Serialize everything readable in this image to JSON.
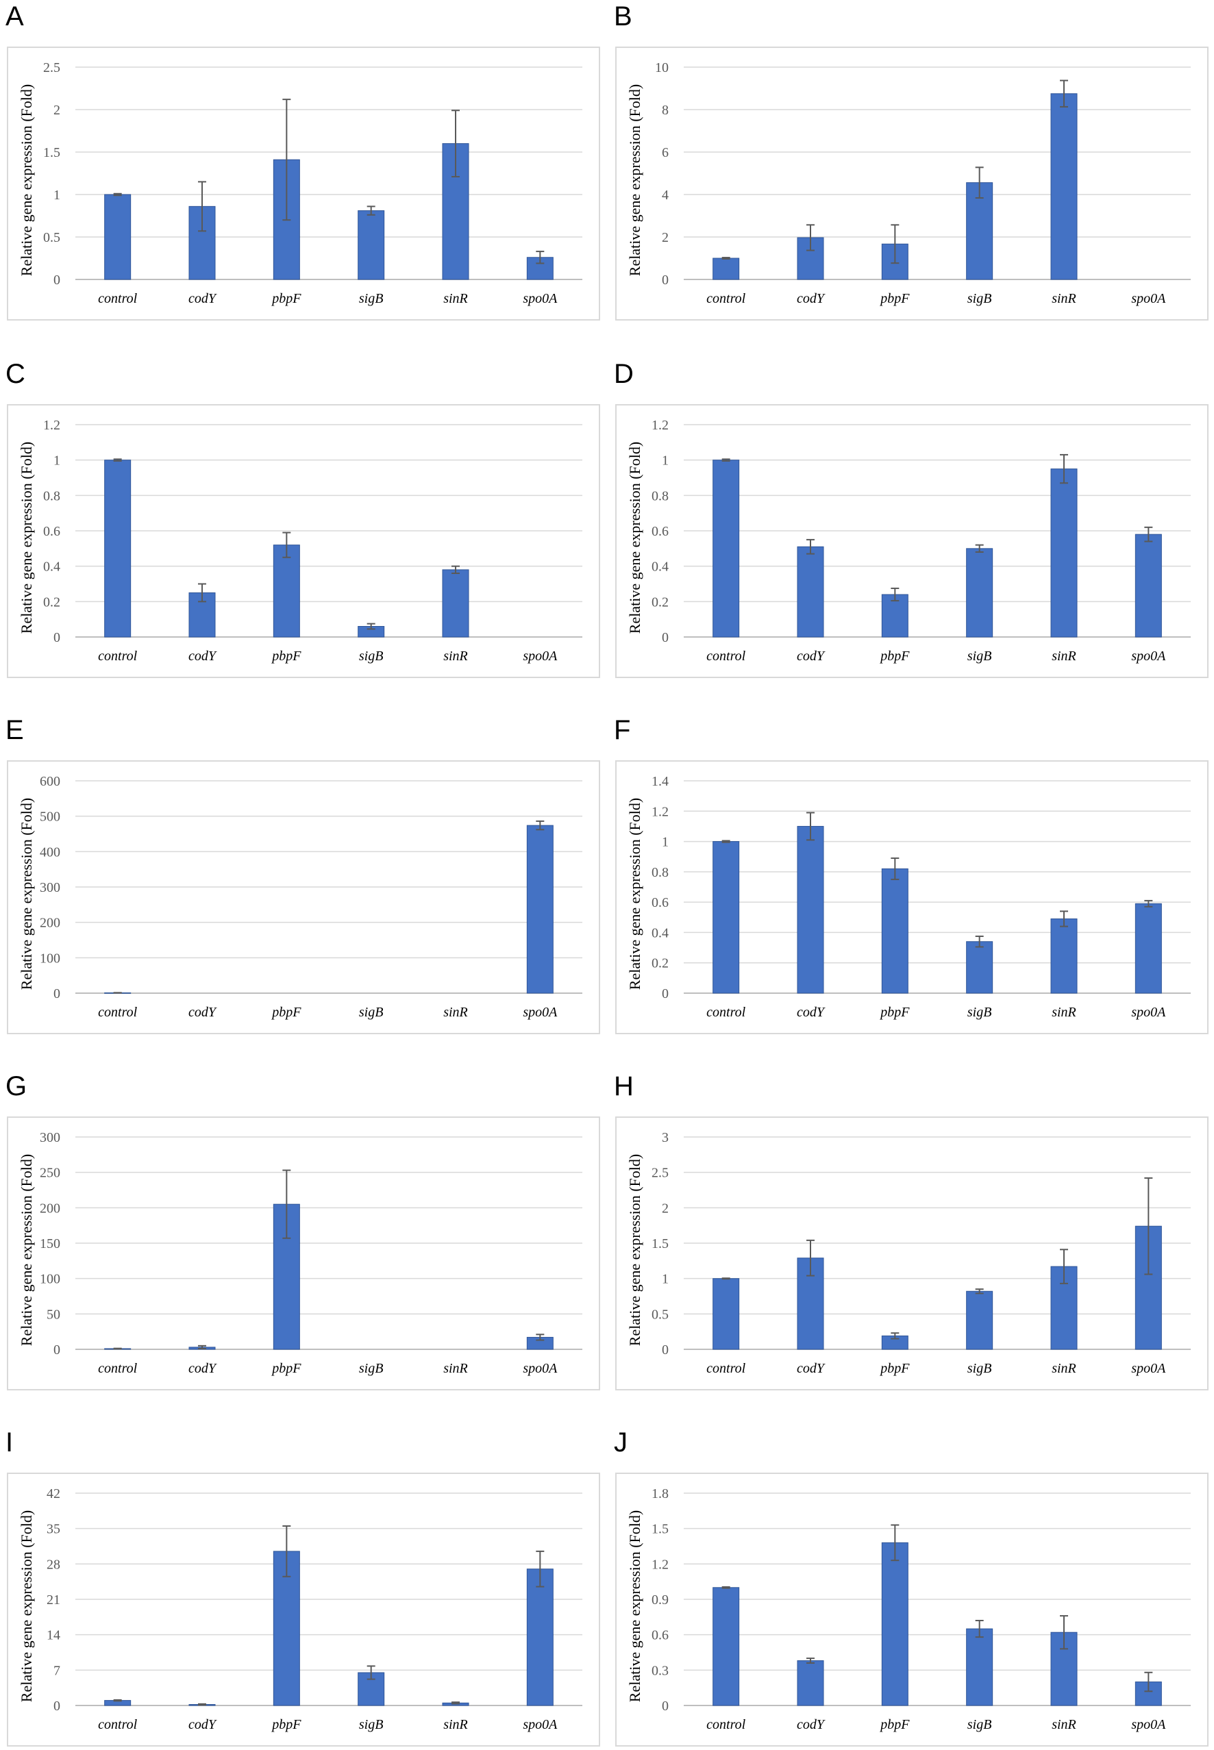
{
  "colors": {
    "bar": "#4472c4",
    "bar_edge": "#2f5597",
    "grid": "#d9d9d9",
    "frame": "#d9d9d9"
  },
  "chart_data": [
    {
      "panel": "A",
      "type": "bar",
      "ylabel": "Relative gene expression (Fold)",
      "categories": [
        "control",
        "codY",
        "pbpF",
        "sigB",
        "sinR",
        "spo0A"
      ],
      "values": [
        1.0,
        0.86,
        1.41,
        0.81,
        1.6,
        0.26
      ],
      "errors": [
        0.01,
        0.29,
        0.71,
        0.05,
        0.39,
        0.07
      ],
      "yticks": [
        "0",
        "0.5",
        "1",
        "1.5",
        "2",
        "2.5"
      ],
      "ylim": [
        0,
        2.5
      ]
    },
    {
      "panel": "B",
      "type": "bar",
      "ylabel": "Relative gene expression (Fold)",
      "categories": [
        "control",
        "codY",
        "pbpF",
        "sigB",
        "sinR",
        "spo0A"
      ],
      "values": [
        1.0,
        1.97,
        1.67,
        4.56,
        8.75,
        null
      ],
      "errors": [
        0.03,
        0.6,
        0.9,
        0.72,
        0.62,
        null
      ],
      "yticks": [
        "0",
        "2",
        "4",
        "6",
        "8",
        "10"
      ],
      "ylim": [
        0,
        10
      ]
    },
    {
      "panel": "C",
      "type": "bar",
      "ylabel": "Relative gene expression (Fold)",
      "categories": [
        "control",
        "codY",
        "pbpF",
        "sigB",
        "sinR",
        "spo0A"
      ],
      "values": [
        1.0,
        0.25,
        0.52,
        0.06,
        0.38,
        null
      ],
      "errors": [
        0.005,
        0.05,
        0.07,
        0.015,
        0.02,
        null
      ],
      "yticks": [
        "0",
        "0.2",
        "0.4",
        "0.6",
        "0.8",
        "1",
        "1.2"
      ],
      "ylim": [
        0,
        1.2
      ]
    },
    {
      "panel": "D",
      "type": "bar",
      "ylabel": "Relative gene expression (Fold)",
      "categories": [
        "control",
        "codY",
        "pbpF",
        "sigB",
        "sinR",
        "spo0A"
      ],
      "values": [
        1.0,
        0.51,
        0.24,
        0.5,
        0.95,
        0.58
      ],
      "errors": [
        0.005,
        0.04,
        0.035,
        0.02,
        0.08,
        0.04
      ],
      "yticks": [
        "0",
        "0.2",
        "0.4",
        "0.6",
        "0.8",
        "1",
        "1.2"
      ],
      "ylim": [
        0,
        1.2
      ]
    },
    {
      "panel": "E",
      "type": "bar",
      "ylabel": "Relative gene expression (Fold)",
      "categories": [
        "control",
        "codY",
        "pbpF",
        "sigB",
        "sinR",
        "spo0A"
      ],
      "values": [
        1.0,
        null,
        null,
        null,
        null,
        474
      ],
      "errors": [
        0.3,
        null,
        null,
        null,
        null,
        12
      ],
      "yticks": [
        "0",
        "100",
        "200",
        "300",
        "400",
        "500",
        "600"
      ],
      "ylim": [
        0,
        600
      ]
    },
    {
      "panel": "F",
      "type": "bar",
      "ylabel": "Relative gene expression (Fold)",
      "categories": [
        "control",
        "codY",
        "pbpF",
        "sigB",
        "sinR",
        "spo0A"
      ],
      "values": [
        1.0,
        1.1,
        0.82,
        0.34,
        0.49,
        0.59
      ],
      "errors": [
        0.005,
        0.09,
        0.07,
        0.035,
        0.05,
        0.02
      ],
      "yticks": [
        "0",
        "0.2",
        "0.4",
        "0.6",
        "0.8",
        "1",
        "1.2",
        "1.4"
      ],
      "ylim": [
        0,
        1.4
      ]
    },
    {
      "panel": "G",
      "type": "bar",
      "ylabel": "Relative gene expression (Fold)",
      "categories": [
        "control",
        "codY",
        "pbpF",
        "sigB",
        "sinR",
        "spo0A"
      ],
      "values": [
        1.0,
        3.0,
        205,
        null,
        null,
        17
      ],
      "errors": [
        0.3,
        2.0,
        48,
        null,
        null,
        4
      ],
      "yticks": [
        "0",
        "50",
        "100",
        "150",
        "200",
        "250",
        "300"
      ],
      "ylim": [
        0,
        300
      ]
    },
    {
      "panel": "H",
      "type": "bar",
      "ylabel": "Relative gene expression (Fold)",
      "categories": [
        "control",
        "codY",
        "pbpF",
        "sigB",
        "sinR",
        "spo0A"
      ],
      "values": [
        1.0,
        1.29,
        0.19,
        0.82,
        1.17,
        1.74
      ],
      "errors": [
        0.005,
        0.25,
        0.04,
        0.03,
        0.24,
        0.68
      ],
      "yticks": [
        "0",
        "0.5",
        "1",
        "1.5",
        "2",
        "2.5",
        "3"
      ],
      "ylim": [
        0,
        3
      ]
    },
    {
      "panel": "I",
      "type": "bar",
      "ylabel": "Relative gene expression (Fold)",
      "categories": [
        "control",
        "codY",
        "pbpF",
        "sigB",
        "sinR",
        "spo0A"
      ],
      "values": [
        1.0,
        0.2,
        30.5,
        6.5,
        0.5,
        27.0
      ],
      "errors": [
        0.1,
        0.1,
        5.0,
        1.3,
        0.15,
        3.5
      ],
      "yticks": [
        "0",
        "7",
        "14",
        "21",
        "28",
        "35",
        "42"
      ],
      "ylim": [
        0,
        42
      ]
    },
    {
      "panel": "J",
      "type": "bar",
      "ylabel": "Relative gene expression (Fold)",
      "categories": [
        "control",
        "codY",
        "pbpF",
        "sigB",
        "sinR",
        "spo0A"
      ],
      "values": [
        1.0,
        0.38,
        1.38,
        0.65,
        0.62,
        0.2
      ],
      "errors": [
        0.005,
        0.02,
        0.15,
        0.07,
        0.14,
        0.08
      ],
      "yticks": [
        "0",
        "0.3",
        "0.6",
        "0.9",
        "1.2",
        "1.5",
        "1.8"
      ],
      "ylim": [
        0,
        1.8
      ]
    }
  ]
}
